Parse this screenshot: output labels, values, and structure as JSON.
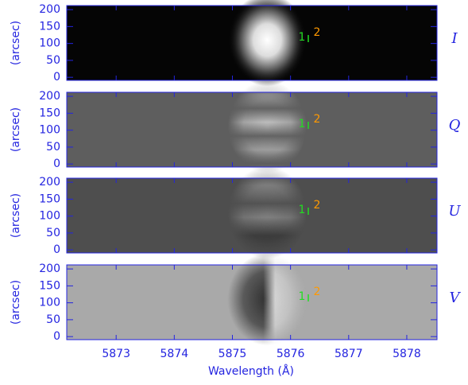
{
  "chart_data": [
    {
      "type": "image",
      "panel": "I",
      "ylabel": "(arcsec)",
      "xlim": [
        5872.15,
        5878.52
      ],
      "ylim": [
        -9,
        212
      ],
      "xticks": [
        5873,
        5874,
        5875,
        5876,
        5877,
        5878
      ],
      "yticks": [
        0,
        50,
        100,
        150,
        200
      ],
      "markers": [
        "1",
        "2"
      ]
    },
    {
      "type": "image",
      "panel": "Q",
      "ylabel": "(arcsec)",
      "xlim": [
        5872.15,
        5878.52
      ],
      "ylim": [
        -9,
        212
      ],
      "xticks": [
        5873,
        5874,
        5875,
        5876,
        5877,
        5878
      ],
      "yticks": [
        0,
        50,
        100,
        150,
        200
      ],
      "markers": [
        "1",
        "2"
      ]
    },
    {
      "type": "image",
      "panel": "U",
      "ylabel": "(arcsec)",
      "xlim": [
        5872.15,
        5878.52
      ],
      "ylim": [
        -9,
        212
      ],
      "xticks": [
        5873,
        5874,
        5875,
        5876,
        5877,
        5878
      ],
      "yticks": [
        0,
        50,
        100,
        150,
        200
      ],
      "markers": [
        "1",
        "2"
      ]
    },
    {
      "type": "image",
      "panel": "V",
      "ylabel": "(arcsec)",
      "xlabel": "Wavelength (Å)",
      "xlim": [
        5872.15,
        5878.52
      ],
      "ylim": [
        -9,
        212
      ],
      "xticks": [
        5873,
        5874,
        5875,
        5876,
        5877,
        5878
      ],
      "yticks": [
        0,
        50,
        100,
        150,
        200
      ],
      "markers": [
        "1",
        "2"
      ]
    }
  ]
}
